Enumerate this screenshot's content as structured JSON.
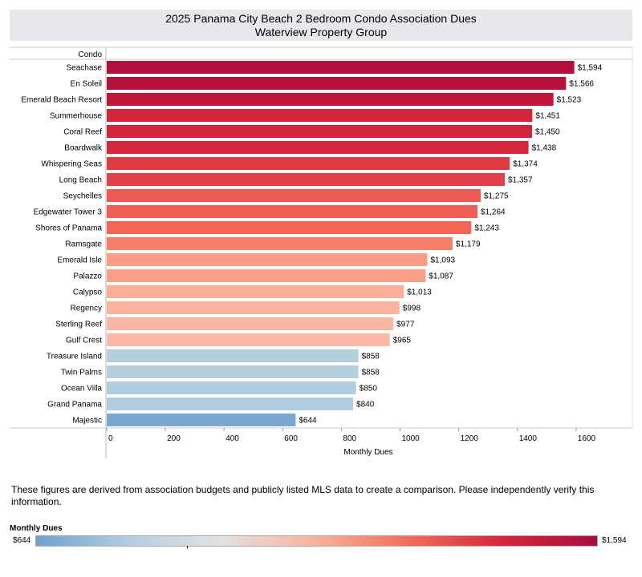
{
  "title_line1": "2025 Panama City Beach 2 Bedroom Condo Association Dues",
  "title_line2": "Waterview Property Group",
  "footnote": "These figures are derived from association budgets and publicly listed MLS data to create a comparison. Please independently verify this information.",
  "legend": {
    "title": "Monthly Dues",
    "min_label": "$644",
    "max_label": "$1,594",
    "colors": [
      "#6fa1cf",
      "#b5cfe1",
      "#e2e2e2",
      "#fbb09c",
      "#f06b58",
      "#d6263c",
      "#a80f3e"
    ]
  },
  "chart_data": {
    "type": "bar",
    "orientation": "horizontal",
    "row_header": "Condo",
    "xlabel": "Monthly Dues",
    "xlim": [
      0,
      1750
    ],
    "xticks": [
      0,
      200,
      400,
      600,
      800,
      1000,
      1200,
      1400,
      1600
    ],
    "xtick_labels": [
      "0",
      "200",
      "400",
      "600",
      "800",
      "1000",
      "1200",
      "1400",
      "1600"
    ],
    "categories": [
      "Seachase",
      "En Soleil",
      "Emerald Beach Resort",
      "Summerhouse",
      "Coral Reef",
      "Boardwalk",
      "Whispering Seas",
      "Long Beach",
      "Seychelles",
      "Edgewater Tower 3",
      "Shores of Panama",
      "Ramsgate",
      "Emerald Isle",
      "Palazzo",
      "Calypso",
      "Regency",
      "Sterling Reef",
      "Gulf Crest",
      "Treasure Island",
      "Twin Palms",
      "Ocean Villa",
      "Grand Panama",
      "Majestic"
    ],
    "values": [
      1594,
      1566,
      1523,
      1451,
      1450,
      1438,
      1374,
      1357,
      1275,
      1264,
      1243,
      1179,
      1093,
      1087,
      1013,
      998,
      977,
      965,
      858,
      858,
      850,
      840,
      644
    ],
    "value_labels": [
      "$1,594",
      "$1,566",
      "$1,523",
      "$1,451",
      "$1,450",
      "$1,438",
      "$1,374",
      "$1,357",
      "$1,275",
      "$1,264",
      "$1,243",
      "$1,179",
      "$1,093",
      "$1,087",
      "$1,013",
      "$998",
      "$977",
      "$965",
      "$858",
      "$858",
      "$850",
      "$840",
      "$644"
    ],
    "bar_colors": [
      "#b00f3c",
      "#b4113b",
      "#bf1638",
      "#d3243b",
      "#d3243b",
      "#d5273b",
      "#e03a42",
      "#e2404a",
      "#ee5b52",
      "#ef5e52",
      "#f16754",
      "#f67f67",
      "#fb9c85",
      "#fb9e87",
      "#fcae99",
      "#fcb29f",
      "#fcb7a4",
      "#fcb9a6",
      "#b5cfdf",
      "#b5cfdf",
      "#b3cde0",
      "#b1cce0",
      "#78a8d2"
    ]
  }
}
